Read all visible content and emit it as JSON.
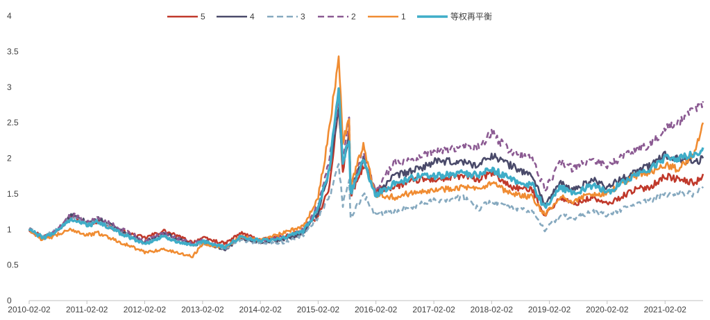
{
  "chart_data": {
    "type": "line",
    "title": "",
    "xlabel": "",
    "ylabel": "",
    "ylim": [
      0,
      4
    ],
    "y_ticks": [
      "0",
      "0.5",
      "1",
      "1.5",
      "2",
      "2.5",
      "3",
      "3.5",
      "4"
    ],
    "x_ticks": [
      "2010-02-02",
      "2011-02-02",
      "2012-02-02",
      "2013-02-02",
      "2014-02-02",
      "2015-02-02",
      "2016-02-02",
      "2017-02-02",
      "2018-02-02",
      "2019-02-02",
      "2020-02-02",
      "2021-02-02"
    ],
    "x_range": [
      "2010-02-02",
      "2021-09-30"
    ],
    "grid": false,
    "legend_position": "top-center",
    "anchor_dates": [
      "2010-02-02",
      "2010-05-01",
      "2010-07-01",
      "2010-11-01",
      "2011-02-02",
      "2011-04-15",
      "2011-08-01",
      "2012-02-02",
      "2012-06-01",
      "2012-12-01",
      "2013-02-02",
      "2013-06-25",
      "2013-10-01",
      "2014-02-02",
      "2014-07-01",
      "2014-11-01",
      "2015-02-02",
      "2015-04-15",
      "2015-06-12",
      "2015-07-08",
      "2015-08-17",
      "2015-08-26",
      "2015-11-15",
      "2016-01-28",
      "2016-06-01",
      "2016-11-01",
      "2017-02-02",
      "2017-08-01",
      "2017-11-15",
      "2018-02-02",
      "2018-06-01",
      "2018-10-18",
      "2019-01-04",
      "2019-04-15",
      "2019-07-01",
      "2019-11-01",
      "2020-02-02",
      "2020-07-15",
      "2020-11-01",
      "2021-02-02",
      "2021-05-01",
      "2021-08-15",
      "2021-09-30"
    ],
    "series": [
      {
        "name": "5",
        "color": "#c0392b",
        "dash": "solid",
        "width": 2.6,
        "values": [
          1.0,
          0.9,
          0.95,
          1.18,
          1.08,
          1.12,
          1.0,
          0.88,
          0.98,
          0.82,
          0.88,
          0.8,
          0.95,
          0.85,
          0.9,
          0.98,
          1.2,
          1.6,
          2.75,
          1.8,
          2.4,
          1.45,
          1.9,
          1.55,
          1.6,
          1.7,
          1.7,
          1.75,
          1.7,
          1.8,
          1.6,
          1.55,
          1.2,
          1.45,
          1.35,
          1.45,
          1.35,
          1.55,
          1.6,
          1.75,
          1.7,
          1.65,
          1.78
        ]
      },
      {
        "name": "4",
        "color": "#4a4a6a",
        "dash": "solid",
        "width": 2.6,
        "values": [
          1.0,
          0.88,
          0.93,
          1.2,
          1.1,
          1.15,
          1.02,
          0.82,
          0.95,
          0.78,
          0.82,
          0.72,
          0.88,
          0.82,
          0.86,
          0.95,
          1.25,
          1.85,
          2.7,
          1.9,
          2.3,
          1.55,
          2.0,
          1.5,
          1.75,
          1.85,
          1.95,
          1.95,
          1.9,
          2.05,
          1.9,
          1.75,
          1.35,
          1.65,
          1.55,
          1.7,
          1.6,
          1.8,
          1.9,
          2.05,
          2.0,
          1.95,
          2.0
        ]
      },
      {
        "name": "3",
        "color": "#86a9bf",
        "dash": "dash",
        "width": 2.6,
        "values": [
          1.0,
          0.9,
          0.95,
          1.18,
          1.08,
          1.12,
          1.0,
          0.8,
          0.9,
          0.78,
          0.8,
          0.72,
          0.85,
          0.8,
          0.82,
          0.92,
          1.15,
          1.45,
          1.9,
          1.35,
          1.7,
          1.15,
          1.5,
          1.2,
          1.25,
          1.35,
          1.4,
          1.45,
          1.3,
          1.4,
          1.3,
          1.25,
          1.0,
          1.2,
          1.15,
          1.25,
          1.2,
          1.35,
          1.4,
          1.5,
          1.5,
          1.5,
          1.6
        ]
      },
      {
        "name": "2",
        "color": "#8b5a92",
        "dash": "dash",
        "width": 2.6,
        "values": [
          1.0,
          0.88,
          0.95,
          1.22,
          1.12,
          1.15,
          1.05,
          0.85,
          0.95,
          0.8,
          0.85,
          0.75,
          0.9,
          0.85,
          0.9,
          1.0,
          1.35,
          2.0,
          2.8,
          2.0,
          2.6,
          1.6,
          2.1,
          1.55,
          1.95,
          2.0,
          2.1,
          2.15,
          2.15,
          2.35,
          2.1,
          2.0,
          1.55,
          1.95,
          1.85,
          2.0,
          1.9,
          2.1,
          2.2,
          2.4,
          2.5,
          2.7,
          2.8
        ]
      },
      {
        "name": "1",
        "color": "#f08c32",
        "dash": "solid",
        "width": 2.6,
        "values": [
          1.0,
          0.85,
          0.9,
          1.0,
          0.92,
          0.95,
          0.85,
          0.68,
          0.72,
          0.62,
          0.8,
          0.75,
          0.9,
          0.85,
          0.95,
          1.05,
          1.45,
          2.4,
          3.5,
          2.2,
          2.6,
          1.6,
          2.2,
          1.5,
          1.45,
          1.55,
          1.55,
          1.6,
          1.55,
          1.65,
          1.5,
          1.45,
          1.2,
          1.45,
          1.4,
          1.5,
          1.5,
          1.75,
          1.8,
          1.9,
          1.85,
          2.1,
          2.5
        ]
      },
      {
        "name": "等权再平衡",
        "color": "#3fadc8",
        "dash": "solid",
        "width": 3.4,
        "values": [
          1.0,
          0.88,
          0.94,
          1.15,
          1.06,
          1.1,
          0.98,
          0.8,
          0.9,
          0.76,
          0.83,
          0.75,
          0.9,
          0.84,
          0.88,
          0.98,
          1.28,
          1.85,
          3.0,
          1.9,
          2.3,
          1.5,
          2.0,
          1.48,
          1.65,
          1.75,
          1.75,
          1.8,
          1.75,
          1.85,
          1.7,
          1.62,
          1.3,
          1.6,
          1.5,
          1.62,
          1.52,
          1.75,
          1.85,
          2.0,
          2.0,
          2.05,
          2.15
        ]
      }
    ]
  }
}
